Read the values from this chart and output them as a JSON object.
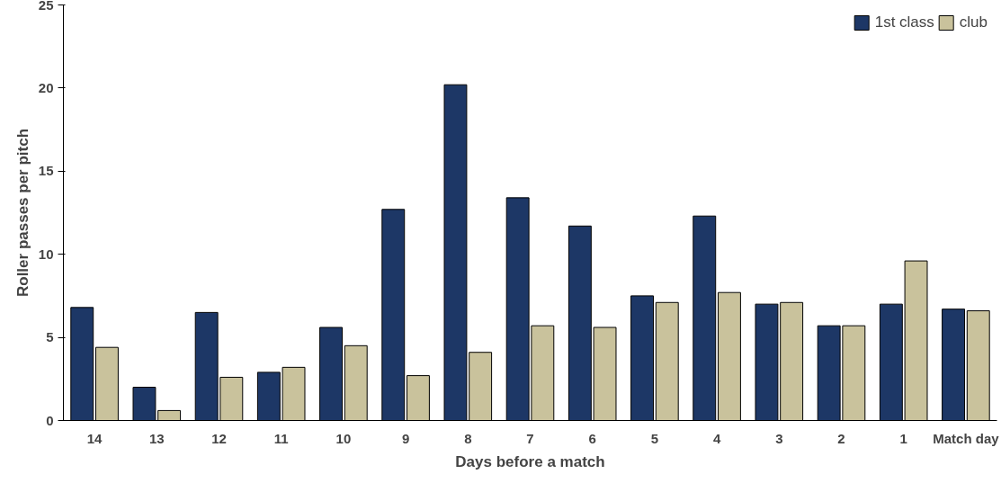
{
  "chart_data": {
    "type": "bar",
    "xlabel": "Days before a match",
    "ylabel": "Roller passes per pitch",
    "categories": [
      "14",
      "13",
      "12",
      "11",
      "10",
      "9",
      "8",
      "7",
      "6",
      "5",
      "4",
      "3",
      "2",
      "1",
      "Match day"
    ],
    "series": [
      {
        "name": "1st class",
        "color": "#1d3766",
        "values": [
          6.8,
          2.0,
          6.5,
          2.9,
          5.6,
          12.7,
          20.2,
          13.4,
          11.7,
          7.5,
          12.3,
          7.0,
          5.7,
          7.0,
          6.7
        ]
      },
      {
        "name": "club",
        "color": "#c9c29c",
        "values": [
          4.4,
          0.6,
          2.6,
          3.2,
          4.5,
          2.7,
          4.1,
          5.7,
          5.6,
          7.1,
          7.7,
          7.1,
          5.7,
          9.6,
          6.6
        ]
      }
    ],
    "ylim": [
      0,
      25
    ],
    "yticks": [
      0,
      5,
      10,
      15,
      20,
      25
    ],
    "grid": false,
    "legend": "top right"
  }
}
